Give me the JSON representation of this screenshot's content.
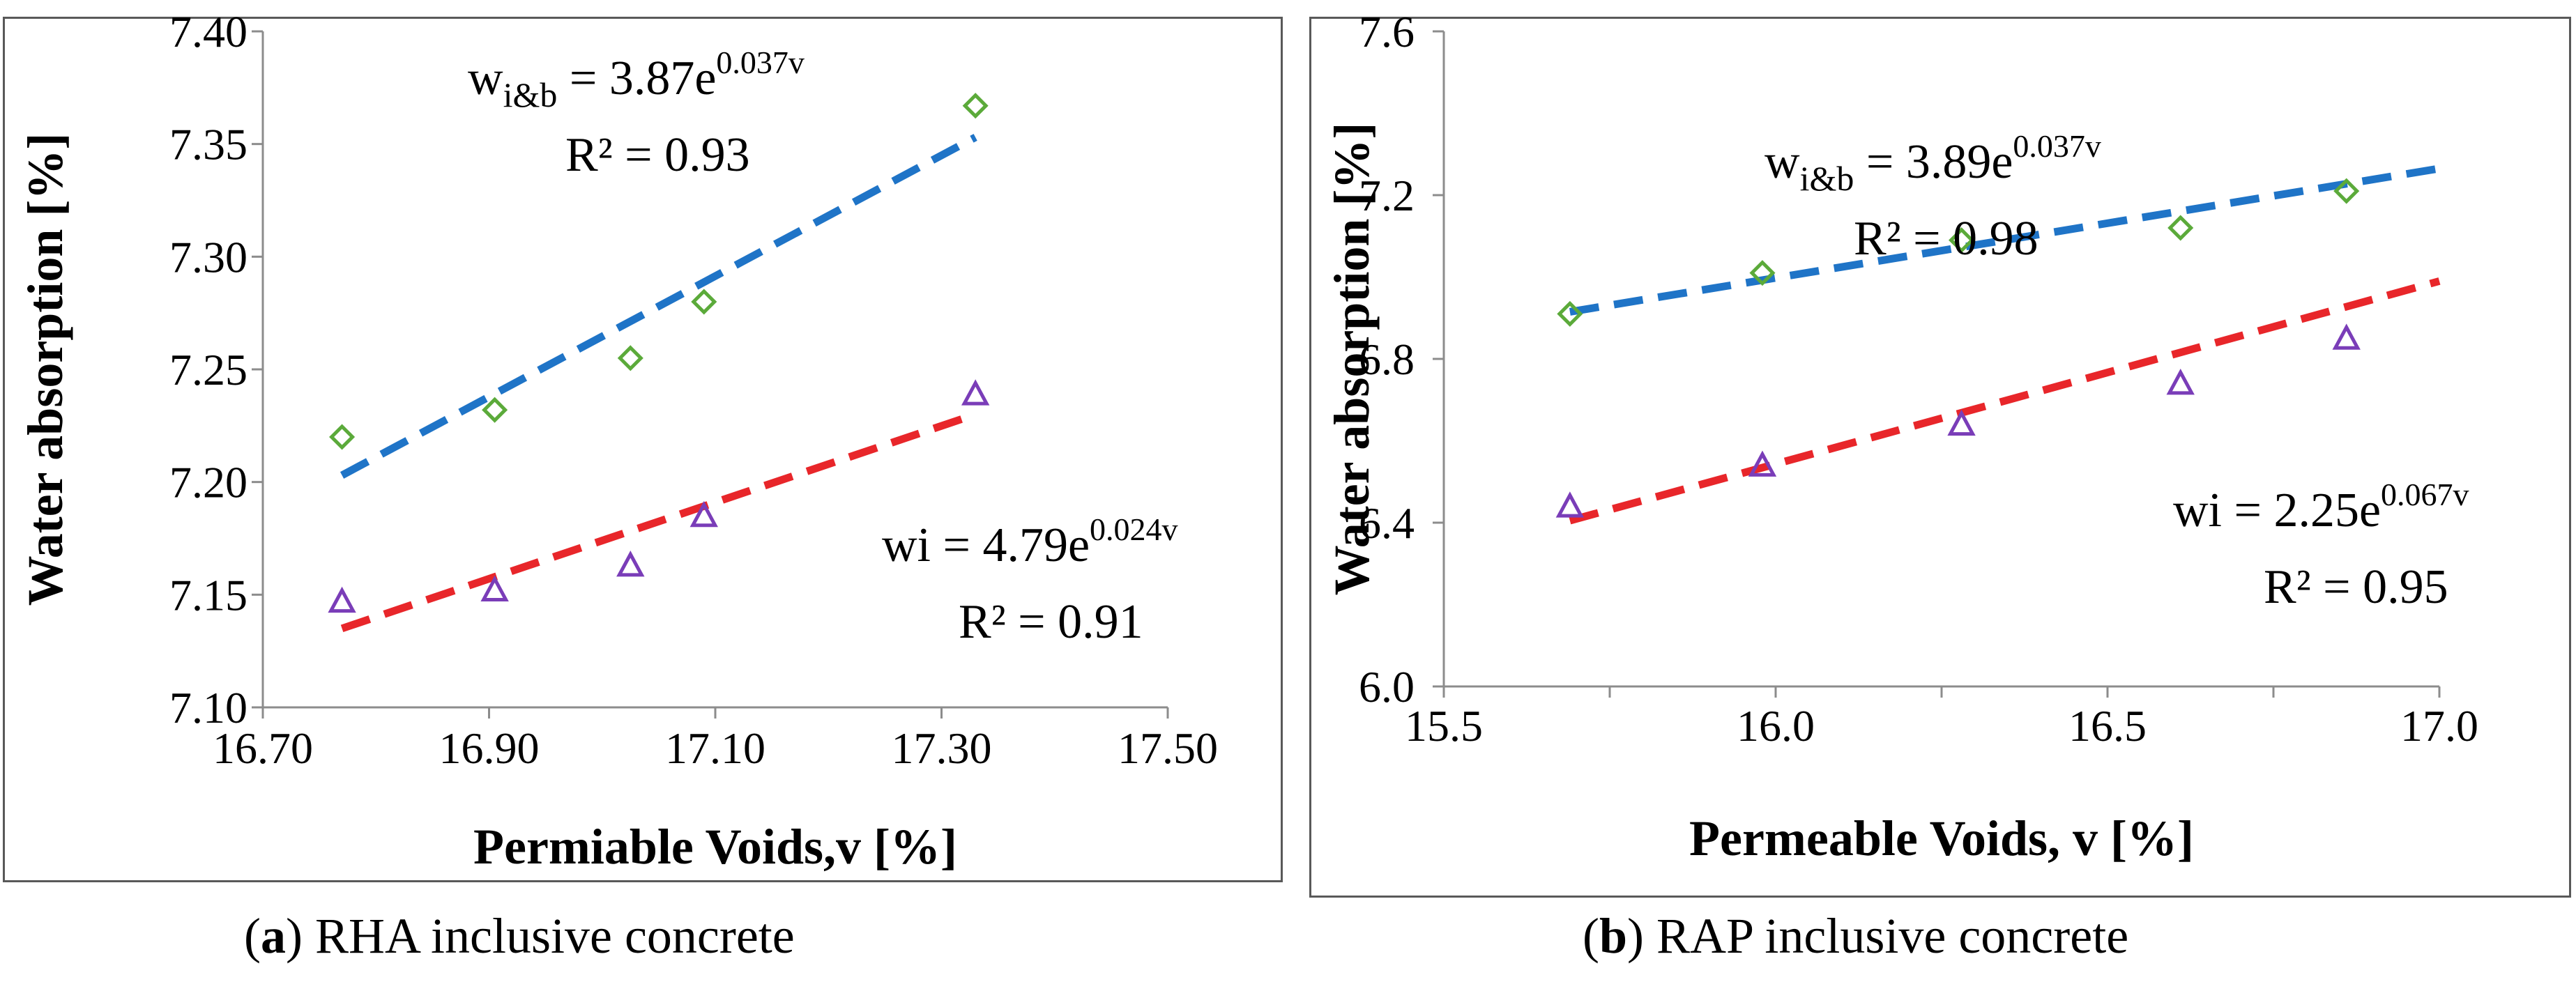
{
  "captions": [
    {
      "label": "a",
      "text": " RHA inclusive concrete"
    },
    {
      "label": "b",
      "text": " RAP inclusive concrete"
    }
  ],
  "chart_data": [
    {
      "type": "scatter",
      "xlabel": "Permiable Voids,v [%]",
      "ylabel": "Water absorption [%]",
      "xlim": [
        16.7,
        17.5
      ],
      "ylim": [
        7.1,
        7.4
      ],
      "xticks": [
        "16.70",
        "16.90",
        "17.10",
        "17.30",
        "17.50"
      ],
      "yticks": [
        "7.10",
        "7.15",
        "7.20",
        "7.25",
        "7.30",
        "7.35",
        "7.40"
      ],
      "grid": false,
      "series": [
        {
          "marker": "diamond",
          "color": "#5BAA3A",
          "trend_color": "#1F74C7",
          "x": [
            16.77,
            16.905,
            17.025,
            17.09,
            17.33
          ],
          "y": [
            7.22,
            7.232,
            7.255,
            7.28,
            7.367
          ],
          "trend": {
            "x": [
              16.77,
              17.33
            ],
            "y": [
              7.203,
              7.353
            ]
          }
        },
        {
          "marker": "triangle",
          "color": "#7A3DB8",
          "trend_color": "#E8262A",
          "x": [
            16.77,
            16.905,
            17.025,
            17.09,
            17.33
          ],
          "y": [
            7.147,
            7.152,
            7.163,
            7.185,
            7.239
          ],
          "trend": {
            "x": [
              16.77,
              17.33
            ],
            "y": [
              7.135,
              7.23
            ]
          }
        }
      ],
      "annotations": [
        {
          "base": "w",
          "sub": "i&b",
          "rest": " = 3.87e",
          "exp": "0.037v",
          "r2": "R² = 0.93"
        },
        {
          "base": "wi = 4.79e",
          "sub": "",
          "rest": "",
          "exp": "0.024v",
          "r2": "R² = 0.91"
        }
      ]
    },
    {
      "type": "scatter",
      "xlabel": "Permeable Voids, v [%]",
      "ylabel": "Water absorption [%]",
      "xlim": [
        15.5,
        17.0
      ],
      "ylim": [
        6.0,
        7.6
      ],
      "xticks": [
        "15.5",
        "16.0",
        "16.5",
        "17.0"
      ],
      "yticks": [
        "6.0",
        "6.4",
        "6.8",
        "7.2",
        "7.6"
      ],
      "grid": false,
      "series": [
        {
          "marker": "diamond",
          "color": "#5BAA3A",
          "trend_color": "#1F74C7",
          "x": [
            15.69,
            15.98,
            16.28,
            16.61,
            16.86
          ],
          "y": [
            6.91,
            7.01,
            7.09,
            7.12,
            7.21
          ],
          "trend": {
            "x": [
              15.69,
              17.0
            ],
            "y": [
              6.915,
              7.265
            ]
          }
        },
        {
          "marker": "triangle",
          "color": "#7A3DB8",
          "trend_color": "#E8262A",
          "x": [
            15.69,
            15.98,
            16.28,
            16.61,
            16.86
          ],
          "y": [
            6.44,
            6.54,
            6.64,
            6.74,
            6.85
          ],
          "trend": {
            "x": [
              15.69,
              17.0
            ],
            "y": [
              6.405,
              6.99
            ]
          }
        }
      ],
      "annotations": [
        {
          "base": "w",
          "sub": "i&b",
          "rest": " = 3.89e",
          "exp": "0.037v",
          "r2": "R² = 0.98"
        },
        {
          "base": "wi = 2.25e",
          "sub": "",
          "rest": "",
          "exp": "0.067v",
          "r2": "R² = 0.95"
        }
      ]
    }
  ]
}
